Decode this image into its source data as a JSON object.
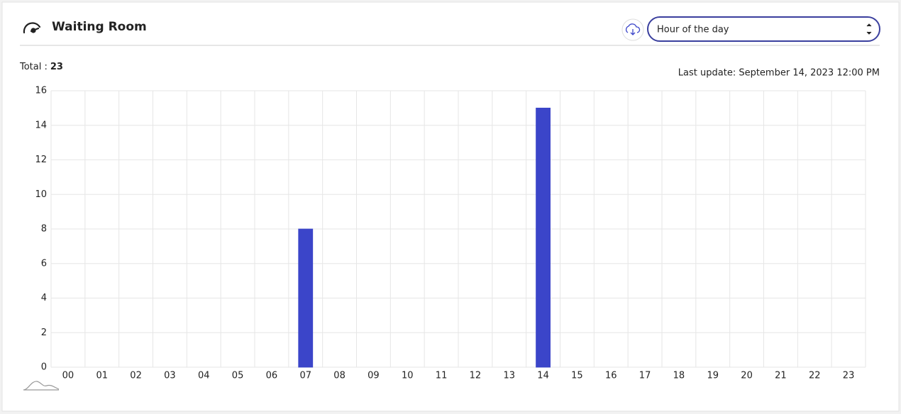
{
  "header": {
    "title": "Waiting Room",
    "select": "Hour of the day"
  },
  "total": {
    "label": "Total :",
    "value": 23
  },
  "last_update": "Last update: September 14, 2023 12:00 PM",
  "chart_data": {
    "type": "bar",
    "categories": [
      "00",
      "01",
      "02",
      "03",
      "04",
      "05",
      "06",
      "07",
      "08",
      "09",
      "10",
      "11",
      "12",
      "13",
      "14",
      "15",
      "16",
      "17",
      "18",
      "19",
      "20",
      "21",
      "22",
      "23"
    ],
    "values": [
      0,
      0,
      0,
      0,
      0,
      0,
      0,
      8,
      0,
      0,
      0,
      0,
      0,
      0,
      15,
      0,
      0,
      0,
      0,
      0,
      0,
      0,
      0,
      0
    ],
    "color": "#3b45c9",
    "ylim": [
      0,
      16
    ],
    "yticks": [
      0,
      2,
      4,
      6,
      8,
      10,
      12,
      14,
      16
    ],
    "grid": true
  }
}
